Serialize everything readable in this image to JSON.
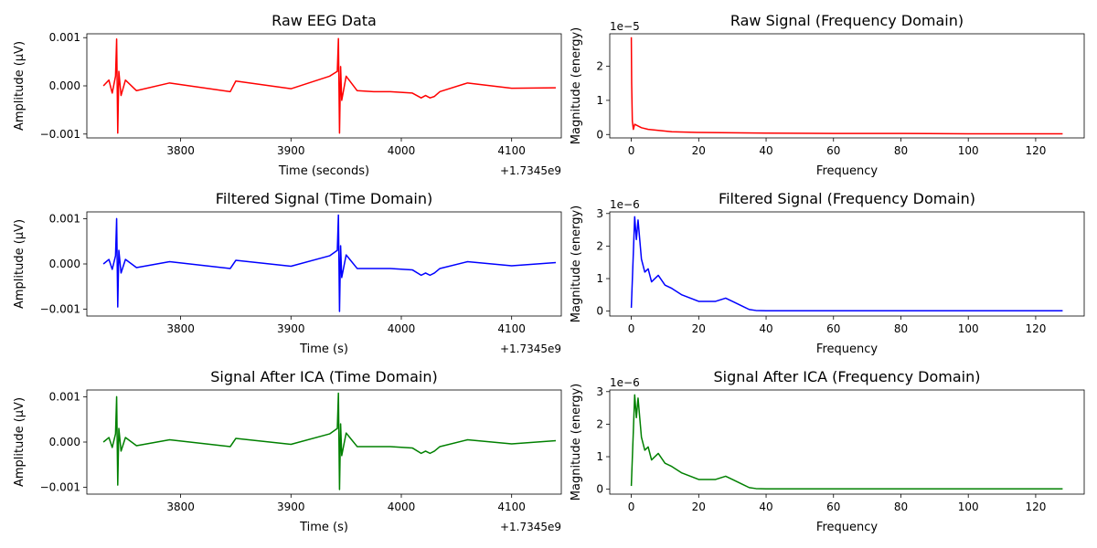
{
  "chart_data": [
    {
      "type": "line",
      "title": "Raw EEG Data",
      "xlabel": "Time (seconds)",
      "ylabel": "Amplitude (µV)",
      "x_offset_label": "+1.7345e9",
      "y_multiplier_label": "",
      "color": "#ff0000",
      "xlim": [
        3715,
        4145
      ],
      "ylim": [
        -0.00108,
        0.00108
      ],
      "xticks": [
        3800,
        3900,
        4000,
        4100
      ],
      "xtick_labels": [
        "3800",
        "3900",
        "4000",
        "4100"
      ],
      "yticks": [
        -0.001,
        0,
        0.001
      ],
      "ytick_labels": [
        "−0.001",
        "0.000",
        "0.001"
      ],
      "grid": false,
      "series": [
        {
          "x": [
            3730,
            3735,
            3738,
            3741,
            3742,
            3743,
            3744,
            3746,
            3750,
            3760,
            3790,
            3845,
            3850,
            3900,
            3935,
            3942,
            3943,
            3944,
            3945,
            3946,
            3950,
            3960,
            3975,
            3990,
            4010,
            4018,
            4022,
            4026,
            4030,
            4035,
            4060,
            4100,
            4140
          ],
          "y": [
            0,
            0.00012,
            -0.00015,
            0.0002,
            0.00097,
            -0.00098,
            0.0003,
            -0.0002,
            0.00012,
            -0.0001,
            6e-05,
            -0.00012,
            0.0001,
            -6e-05,
            0.0002,
            0.0003,
            0.00098,
            -0.00098,
            0.0004,
            -0.0003,
            0.0002,
            -0.0001,
            -0.00012,
            -0.00012,
            -0.00015,
            -0.00025,
            -0.0002,
            -0.00025,
            -0.00022,
            -0.00012,
            6e-05,
            -5e-05,
            -4e-05
          ]
        }
      ]
    },
    {
      "type": "line",
      "title": "Raw Signal (Frequency Domain)",
      "xlabel": "Frequency",
      "ylabel": "Magnitude (energy)",
      "x_offset_label": "",
      "y_multiplier_label": "1e−5",
      "color": "#ff0000",
      "xlim": [
        -6.4,
        134.4
      ],
      "ylim": [
        -1e-06,
        2.95e-05
      ],
      "xticks": [
        0,
        20,
        40,
        60,
        80,
        100,
        120
      ],
      "xtick_labels": [
        "0",
        "20",
        "40",
        "60",
        "80",
        "100",
        "120"
      ],
      "yticks": [
        0,
        1e-05,
        2e-05
      ],
      "ytick_labels": [
        "0",
        "1",
        "2"
      ],
      "grid": false,
      "series": [
        {
          "x": [
            0,
            0.1,
            0.3,
            0.6,
            1,
            2,
            3,
            5,
            8,
            12,
            20,
            40,
            60,
            80,
            100,
            128
          ],
          "y": [
            2.85e-05,
            1.5e-05,
            4e-06,
            1.5e-06,
            3e-06,
            2.5e-06,
            2e-06,
            1.5e-06,
            1.2e-06,
            8e-07,
            6e-07,
            4e-07,
            3e-07,
            3e-07,
            2e-07,
            2e-07
          ]
        }
      ]
    },
    {
      "type": "line",
      "title": "Filtered Signal (Time Domain)",
      "xlabel": "Time (s)",
      "ylabel": "Amplitude (µV)",
      "x_offset_label": "+1.7345e9",
      "y_multiplier_label": "",
      "color": "#0000ff",
      "xlim": [
        3715,
        4145
      ],
      "ylim": [
        -0.00115,
        0.00115
      ],
      "xticks": [
        3800,
        3900,
        4000,
        4100
      ],
      "xtick_labels": [
        "3800",
        "3900",
        "4000",
        "4100"
      ],
      "yticks": [
        -0.001,
        0,
        0.001
      ],
      "ytick_labels": [
        "−0.001",
        "0.000",
        "0.001"
      ],
      "grid": false,
      "series": [
        {
          "x": [
            3730,
            3735,
            3738,
            3741,
            3742,
            3743,
            3744,
            3746,
            3750,
            3760,
            3790,
            3845,
            3850,
            3900,
            3935,
            3942,
            3943,
            3944,
            3945,
            3946,
            3950,
            3960,
            3975,
            3990,
            4010,
            4018,
            4022,
            4026,
            4030,
            4035,
            4060,
            4100,
            4140
          ],
          "y": [
            0,
            0.0001,
            -0.00012,
            0.00018,
            0.001,
            -0.00095,
            0.0003,
            -0.0002,
            0.0001,
            -8e-05,
            5e-05,
            -0.0001,
            8e-05,
            -5e-05,
            0.00018,
            0.0003,
            0.00108,
            -0.00105,
            0.0004,
            -0.0003,
            0.0002,
            -0.0001,
            -0.0001,
            -0.0001,
            -0.00013,
            -0.00025,
            -0.0002,
            -0.00025,
            -0.0002,
            -0.0001,
            5e-05,
            -4e-05,
            3e-05
          ]
        }
      ]
    },
    {
      "type": "line",
      "title": "Filtered Signal (Frequency Domain)",
      "xlabel": "Frequency",
      "ylabel": "Magnitude (energy)",
      "x_offset_label": "",
      "y_multiplier_label": "1e−6",
      "color": "#0000ff",
      "xlim": [
        -6.4,
        134.4
      ],
      "ylim": [
        -1.5e-07,
        3.05e-06
      ],
      "xticks": [
        0,
        20,
        40,
        60,
        80,
        100,
        120
      ],
      "xtick_labels": [
        "0",
        "20",
        "40",
        "60",
        "80",
        "100",
        "120"
      ],
      "yticks": [
        0,
        1e-06,
        2e-06,
        3e-06
      ],
      "ytick_labels": [
        "0",
        "1",
        "2",
        "3"
      ],
      "grid": false,
      "series": [
        {
          "x": [
            0,
            0.5,
            1,
            1.5,
            2,
            3,
            4,
            5,
            6,
            8,
            10,
            12,
            15,
            20,
            25,
            28,
            30,
            33,
            35,
            37,
            40,
            60,
            80,
            100,
            128
          ],
          "y": [
            1e-07,
            1.5e-06,
            2.9e-06,
            2.2e-06,
            2.8e-06,
            1.6e-06,
            1.2e-06,
            1.3e-06,
            9e-07,
            1.1e-06,
            8e-07,
            7e-07,
            5e-07,
            3e-07,
            3e-07,
            4e-07,
            3e-07,
            1.5e-07,
            5e-08,
            2e-08,
            1e-08,
            1e-08,
            1e-08,
            1e-08,
            1e-08
          ]
        }
      ]
    },
    {
      "type": "line",
      "title": "Signal After ICA (Time Domain)",
      "xlabel": "Time (s)",
      "ylabel": "Amplitude (µV)",
      "x_offset_label": "+1.7345e9",
      "y_multiplier_label": "",
      "color": "#008000",
      "xlim": [
        3715,
        4145
      ],
      "ylim": [
        -0.00115,
        0.00115
      ],
      "xticks": [
        3800,
        3900,
        4000,
        4100
      ],
      "xtick_labels": [
        "3800",
        "3900",
        "4000",
        "4100"
      ],
      "yticks": [
        -0.001,
        0,
        0.001
      ],
      "ytick_labels": [
        "−0.001",
        "0.000",
        "0.001"
      ],
      "grid": false,
      "series": [
        {
          "x": [
            3730,
            3735,
            3738,
            3741,
            3742,
            3743,
            3744,
            3746,
            3750,
            3760,
            3790,
            3845,
            3850,
            3900,
            3935,
            3942,
            3943,
            3944,
            3945,
            3946,
            3950,
            3960,
            3975,
            3990,
            4010,
            4018,
            4022,
            4026,
            4030,
            4035,
            4060,
            4100,
            4140
          ],
          "y": [
            0,
            0.0001,
            -0.00012,
            0.00018,
            0.001,
            -0.00095,
            0.0003,
            -0.0002,
            0.0001,
            -8e-05,
            5e-05,
            -0.0001,
            8e-05,
            -5e-05,
            0.00018,
            0.0003,
            0.00108,
            -0.00105,
            0.0004,
            -0.0003,
            0.0002,
            -0.0001,
            -0.0001,
            -0.0001,
            -0.00013,
            -0.00025,
            -0.0002,
            -0.00025,
            -0.0002,
            -0.0001,
            5e-05,
            -4e-05,
            3e-05
          ]
        }
      ]
    },
    {
      "type": "line",
      "title": "Signal After ICA (Frequency Domain)",
      "xlabel": "Frequency",
      "ylabel": "Magnitude (energy)",
      "x_offset_label": "",
      "y_multiplier_label": "1e−6",
      "color": "#008000",
      "xlim": [
        -6.4,
        134.4
      ],
      "ylim": [
        -1.5e-07,
        3.05e-06
      ],
      "xticks": [
        0,
        20,
        40,
        60,
        80,
        100,
        120
      ],
      "xtick_labels": [
        "0",
        "20",
        "40",
        "60",
        "80",
        "100",
        "120"
      ],
      "yticks": [
        0,
        1e-06,
        2e-06,
        3e-06
      ],
      "ytick_labels": [
        "0",
        "1",
        "2",
        "3"
      ],
      "grid": false,
      "series": [
        {
          "x": [
            0,
            0.5,
            1,
            1.5,
            2,
            3,
            4,
            5,
            6,
            8,
            10,
            12,
            15,
            20,
            25,
            28,
            30,
            33,
            35,
            37,
            40,
            60,
            80,
            100,
            128
          ],
          "y": [
            1e-07,
            1.5e-06,
            2.9e-06,
            2.2e-06,
            2.8e-06,
            1.6e-06,
            1.2e-06,
            1.3e-06,
            9e-07,
            1.1e-06,
            8e-07,
            7e-07,
            5e-07,
            3e-07,
            3e-07,
            4e-07,
            3e-07,
            1.5e-07,
            5e-08,
            2e-08,
            1e-08,
            1e-08,
            1e-08,
            1e-08,
            1e-08
          ]
        }
      ]
    }
  ]
}
